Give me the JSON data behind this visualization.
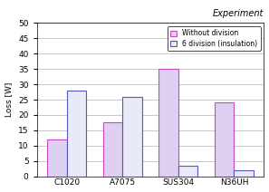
{
  "categories": [
    "C1020",
    "A7075",
    "SUS304",
    "N36UH"
  ],
  "without_division": [
    12,
    17.5,
    35,
    24
  ],
  "six_division": [
    28,
    26,
    3.5,
    2
  ],
  "bar_color_without": "#ddd0f0",
  "bar_edge_without": "#cc44cc",
  "bar_color_six": "#e8eaf8",
  "bar_edge_six": "#5555bb",
  "title": "Experiment",
  "ylabel": "Loss [W]",
  "ylim": [
    0,
    50
  ],
  "yticks": [
    0,
    5,
    10,
    15,
    20,
    25,
    30,
    35,
    40,
    45,
    50
  ],
  "legend_labels": [
    "Without division",
    "6 division (insulation)"
  ],
  "bar_width": 0.35
}
